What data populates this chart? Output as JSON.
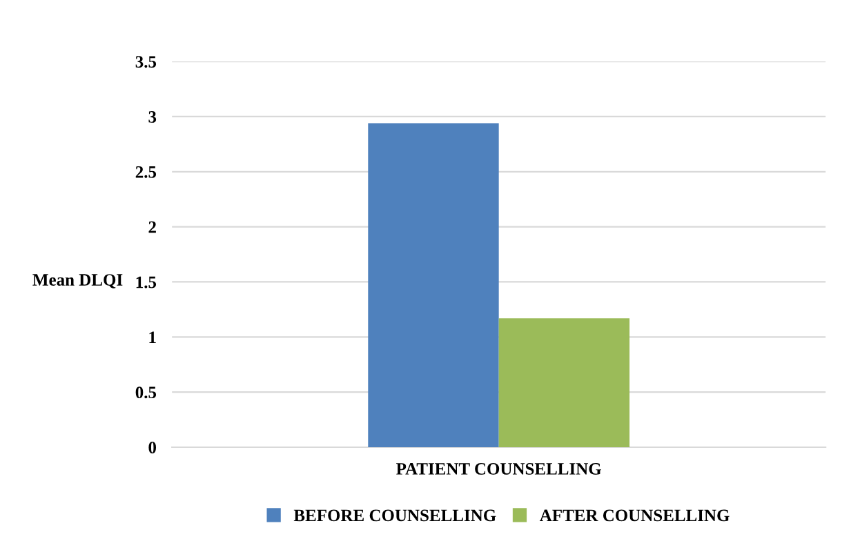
{
  "chart_data": {
    "type": "bar",
    "ylabel": "Mean DLQI",
    "categories": [
      "PATIENT COUNSELLING"
    ],
    "series": [
      {
        "name": "BEFORE COUNSELLING",
        "color": "#4f81bd",
        "values": [
          2.94
        ]
      },
      {
        "name": "AFTER COUNSELLING",
        "color": "#9bbb59",
        "values": [
          1.17
        ]
      }
    ],
    "ylim": [
      0,
      3.5
    ],
    "yticks": [
      0,
      0.5,
      1,
      1.5,
      2,
      2.5,
      3,
      3.5
    ],
    "grid": "y",
    "legend": "bottom"
  }
}
